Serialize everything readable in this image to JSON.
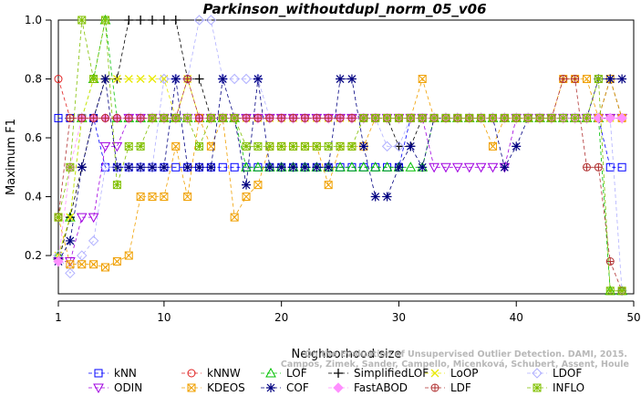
{
  "chart_data": {
    "type": "line",
    "title": "Parkinson_withoutdupl_norm_05_v06",
    "xlabel": "Neighborhood size",
    "ylabel": "Maximum F1",
    "xlim": [
      1,
      50
    ],
    "ylim": [
      0.07,
      1.0
    ],
    "xticks": [
      1,
      10,
      20,
      30,
      40,
      50
    ],
    "yticks": [
      0.2,
      0.4,
      0.6,
      0.8,
      1.0
    ],
    "xtick_labels": [
      "1",
      "10",
      "20",
      "30",
      "40",
      "50"
    ],
    "ytick_labels": [
      "0.2",
      "0.4",
      "0.6",
      "0.8",
      "1.0"
    ],
    "grid": false,
    "legend_position": "bottom",
    "x": [
      1,
      2,
      3,
      4,
      5,
      6,
      7,
      8,
      9,
      10,
      11,
      12,
      13,
      14,
      15,
      16,
      17,
      18,
      19,
      20,
      21,
      22,
      23,
      24,
      25,
      26,
      27,
      28,
      29,
      30,
      31,
      32,
      33,
      34,
      35,
      36,
      37,
      38,
      39,
      40,
      41,
      42,
      43,
      44,
      45,
      46,
      47,
      48,
      49
    ],
    "series": [
      {
        "name": "kNN",
        "color": "#0000ff",
        "marker": "square",
        "values": [
          0.667,
          0.667,
          0.667,
          0.667,
          0.5,
          0.5,
          0.5,
          0.5,
          0.5,
          0.5,
          0.5,
          0.5,
          0.5,
          0.5,
          0.5,
          0.5,
          0.5,
          0.5,
          0.5,
          0.5,
          0.5,
          0.5,
          0.5,
          0.5,
          0.5,
          0.5,
          0.5,
          0.5,
          0.5,
          0.5,
          0.667,
          0.667,
          0.667,
          0.667,
          0.667,
          0.667,
          0.667,
          0.667,
          0.667,
          0.667,
          0.667,
          0.667,
          0.667,
          0.667,
          0.667,
          0.667,
          0.667,
          0.5,
          0.5
        ]
      },
      {
        "name": "kNNW",
        "color": "#e02020",
        "marker": "circle",
        "values": [
          0.8,
          0.667,
          0.667,
          0.667,
          0.667,
          0.667,
          0.667,
          0.667,
          0.667,
          0.667,
          0.667,
          0.667,
          0.667,
          0.667,
          0.667,
          0.667,
          0.667,
          0.667,
          0.667,
          0.667,
          0.667,
          0.667,
          0.667,
          0.667,
          0.667,
          0.667,
          0.667,
          0.667,
          0.667,
          0.667,
          0.667,
          0.667,
          0.667,
          0.667,
          0.667,
          0.667,
          0.667,
          0.667,
          0.667,
          0.667,
          0.667,
          0.667,
          0.667,
          0.667,
          0.667,
          0.667,
          0.667,
          0.667,
          0.667
        ]
      },
      {
        "name": "LOF",
        "color": "#00c000",
        "marker": "triangle-up",
        "values": [
          0.2,
          0.33,
          0.667,
          0.8,
          1.0,
          0.667,
          0.667,
          0.667,
          0.667,
          0.667,
          0.667,
          0.667,
          0.667,
          0.667,
          0.667,
          0.667,
          0.5,
          0.5,
          0.5,
          0.5,
          0.5,
          0.5,
          0.5,
          0.5,
          0.5,
          0.5,
          0.5,
          0.5,
          0.5,
          0.5,
          0.5,
          0.5,
          0.667,
          0.667,
          0.667,
          0.667,
          0.667,
          0.667,
          0.667,
          0.667,
          0.667,
          0.667,
          0.667,
          0.667,
          0.667,
          0.667,
          0.667,
          0.08,
          0.08
        ]
      },
      {
        "name": "SimplifiedLOF",
        "color": "#000000",
        "marker": "plus",
        "values": [
          0.18,
          0.33,
          0.5,
          0.667,
          0.8,
          0.8,
          1.0,
          1.0,
          1.0,
          1.0,
          1.0,
          0.8,
          0.8,
          0.667,
          0.667,
          0.667,
          0.667,
          0.667,
          0.667,
          0.667,
          0.667,
          0.667,
          0.667,
          0.667,
          0.667,
          0.667,
          0.667,
          0.667,
          0.667,
          0.571,
          0.571,
          0.667,
          0.667,
          0.667,
          0.667,
          0.667,
          0.667,
          0.667,
          0.667,
          0.667,
          0.667,
          0.667,
          0.667,
          0.667,
          0.667,
          0.667,
          0.667,
          0.8,
          0.667
        ]
      },
      {
        "name": "LoOP",
        "color": "#e8e800",
        "marker": "cross",
        "values": [
          0.2,
          0.33,
          0.667,
          0.8,
          0.8,
          0.8,
          0.8,
          0.8,
          0.8,
          0.8,
          0.667,
          0.8,
          0.667,
          0.667,
          0.667,
          0.667,
          0.667,
          0.667,
          0.667,
          0.667,
          0.667,
          0.667,
          0.667,
          0.667,
          0.667,
          0.667,
          0.667,
          0.667,
          0.667,
          0.667,
          0.667,
          0.667,
          0.667,
          0.667,
          0.667,
          0.667,
          0.667,
          0.667,
          0.667,
          0.667,
          0.667,
          0.667,
          0.667,
          0.667,
          0.667,
          0.667,
          0.667,
          0.667,
          0.667
        ]
      },
      {
        "name": "LDOF",
        "color": "#b0b0ff",
        "marker": "diamond",
        "values": [
          0.2,
          0.14,
          0.2,
          0.25,
          0.5,
          0.5,
          0.5,
          0.5,
          0.5,
          0.8,
          0.8,
          0.8,
          1.0,
          1.0,
          0.8,
          0.8,
          0.8,
          0.8,
          0.667,
          0.667,
          0.667,
          0.667,
          0.667,
          0.667,
          0.667,
          0.667,
          0.667,
          0.667,
          0.571,
          0.571,
          0.667,
          0.667,
          0.667,
          0.667,
          0.667,
          0.667,
          0.667,
          0.667,
          0.667,
          0.667,
          0.667,
          0.667,
          0.667,
          0.667,
          0.667,
          0.667,
          0.667,
          0.667,
          0.08
        ]
      },
      {
        "name": "ODIN",
        "color": "#a000e0",
        "marker": "triangle-down",
        "values": [
          0.18,
          0.18,
          0.33,
          0.33,
          0.571,
          0.571,
          0.667,
          0.667,
          0.667,
          0.667,
          0.667,
          0.667,
          0.667,
          0.667,
          0.667,
          0.667,
          0.667,
          0.667,
          0.667,
          0.667,
          0.667,
          0.667,
          0.667,
          0.667,
          0.667,
          0.667,
          0.667,
          0.667,
          0.667,
          0.667,
          0.667,
          0.667,
          0.5,
          0.5,
          0.5,
          0.5,
          0.5,
          0.5,
          0.5,
          0.667,
          0.667,
          0.667,
          0.667,
          0.667,
          0.667,
          0.667,
          0.667,
          0.667,
          0.667
        ]
      },
      {
        "name": "KDEOS",
        "color": "#f0a000",
        "marker": "boxed-x",
        "values": [
          0.33,
          0.17,
          0.17,
          0.17,
          0.16,
          0.18,
          0.2,
          0.4,
          0.4,
          0.4,
          0.571,
          0.4,
          0.667,
          0.571,
          0.667,
          0.33,
          0.4,
          0.44,
          0.571,
          0.571,
          0.571,
          0.571,
          0.571,
          0.44,
          0.571,
          0.571,
          0.571,
          0.667,
          0.667,
          0.667,
          0.667,
          0.8,
          0.667,
          0.667,
          0.667,
          0.667,
          0.667,
          0.571,
          0.667,
          0.667,
          0.667,
          0.667,
          0.667,
          0.8,
          0.8,
          0.8,
          0.667,
          0.8,
          0.667
        ]
      },
      {
        "name": "COF",
        "color": "#000080",
        "marker": "asterisk",
        "values": [
          0.18,
          0.25,
          0.5,
          0.667,
          0.8,
          0.5,
          0.5,
          0.5,
          0.5,
          0.5,
          0.8,
          0.5,
          0.5,
          0.5,
          0.8,
          0.667,
          0.44,
          0.8,
          0.5,
          0.5,
          0.5,
          0.5,
          0.5,
          0.5,
          0.8,
          0.8,
          0.571,
          0.4,
          0.4,
          0.5,
          0.571,
          0.5,
          0.667,
          0.667,
          0.667,
          0.667,
          0.667,
          0.667,
          0.5,
          0.571,
          0.667,
          0.667,
          0.667,
          0.667,
          0.667,
          0.667,
          0.8,
          0.8,
          0.8
        ]
      },
      {
        "name": "FastABOD",
        "color": "#ff90ff",
        "marker": "diamond-filled",
        "values": [
          0.18,
          0.5,
          0.667,
          0.667,
          0.667,
          0.667,
          0.667,
          0.667,
          0.667,
          0.667,
          0.667,
          0.667,
          0.667,
          0.667,
          0.667,
          0.667,
          0.667,
          0.667,
          0.667,
          0.667,
          0.667,
          0.667,
          0.667,
          0.667,
          0.667,
          0.667,
          0.667,
          0.667,
          0.667,
          0.667,
          0.667,
          0.667,
          0.667,
          0.667,
          0.667,
          0.667,
          0.667,
          0.667,
          0.667,
          0.667,
          0.667,
          0.667,
          0.667,
          0.667,
          0.667,
          0.667,
          0.667,
          0.667,
          0.667
        ]
      },
      {
        "name": "LDF",
        "color": "#b03030",
        "marker": "circle-plus",
        "values": [
          0.33,
          0.667,
          0.667,
          0.667,
          0.667,
          0.667,
          0.667,
          0.667,
          0.667,
          0.667,
          0.667,
          0.8,
          0.667,
          0.667,
          0.667,
          0.667,
          0.667,
          0.667,
          0.667,
          0.667,
          0.667,
          0.667,
          0.667,
          0.667,
          0.667,
          0.667,
          0.667,
          0.667,
          0.667,
          0.667,
          0.667,
          0.667,
          0.667,
          0.667,
          0.667,
          0.667,
          0.667,
          0.667,
          0.667,
          0.667,
          0.667,
          0.667,
          0.667,
          0.8,
          0.8,
          0.5,
          0.5,
          0.18,
          0.08
        ]
      },
      {
        "name": "INFLO",
        "color": "#80c000",
        "marker": "star",
        "values": [
          0.33,
          0.5,
          1.0,
          0.8,
          1.0,
          0.44,
          0.571,
          0.571,
          0.667,
          0.667,
          0.667,
          0.667,
          0.571,
          0.667,
          0.667,
          0.667,
          0.571,
          0.571,
          0.571,
          0.571,
          0.571,
          0.571,
          0.571,
          0.571,
          0.571,
          0.571,
          0.667,
          0.667,
          0.667,
          0.667,
          0.667,
          0.667,
          0.667,
          0.667,
          0.667,
          0.667,
          0.667,
          0.667,
          0.667,
          0.667,
          0.667,
          0.667,
          0.667,
          0.667,
          0.667,
          0.667,
          0.8,
          0.08,
          0.08
        ]
      }
    ],
    "watermark": [
      "Campos, Zimek, Sander, Campello, Micenková, Schubert, Assent, Houle",
      "On the Evaluation of Unsupervised Outlier Detection. DAMI, 2015."
    ]
  }
}
